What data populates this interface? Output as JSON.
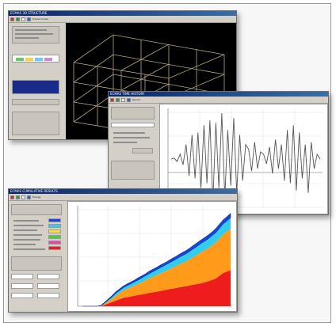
{
  "windows": {
    "structure": {
      "title": "ECMAS 3D STRUCTURE",
      "toolbar_label": "Frame model"
    },
    "time_history": {
      "title": "ECMAS TIME HISTORY",
      "toolbar_label": "Record"
    },
    "stacked": {
      "title": "ECMAS CUMULATIVE RESULTS",
      "toolbar_label": "Energy"
    }
  },
  "colors": {
    "accent": "#0a246a",
    "series_red": "#ee1c1c",
    "series_orange": "#ff9a1a",
    "series_cyan": "#33ccee",
    "series_blue": "#1a44dd"
  },
  "chart_data": [
    {
      "type": "line",
      "x": [
        0,
        1,
        2,
        3,
        4,
        5,
        6,
        7,
        8,
        9,
        10,
        11,
        12,
        13,
        14,
        15,
        16,
        17,
        18,
        19,
        20,
        21,
        22,
        23,
        24,
        25,
        26,
        27,
        28,
        29,
        30,
        31,
        32,
        33,
        34,
        35,
        36,
        37,
        38,
        39,
        40,
        41,
        42,
        43,
        44,
        45,
        46,
        47,
        48,
        49,
        50
      ],
      "values": [
        0,
        0.02,
        -0.05,
        0.1,
        -0.12,
        0.3,
        -0.35,
        0.5,
        -0.4,
        0.55,
        -0.6,
        0.7,
        -0.5,
        0.8,
        -0.9,
        0.75,
        -0.6,
        0.95,
        -0.8,
        0.6,
        -0.55,
        0.85,
        -0.7,
        0.5,
        -0.45,
        0.3,
        0.2,
        -0.25,
        0.35,
        -0.2,
        0.15,
        0.1,
        -0.1,
        0.25,
        -0.3,
        0.4,
        -0.2,
        0.3,
        -0.45,
        0.6,
        -0.5,
        0.7,
        -0.65,
        0.55,
        -0.4,
        0.3,
        -0.7,
        0.35,
        -0.2,
        0.1,
        0
      ],
      "ylim": [
        -1,
        1
      ]
    },
    {
      "type": "area",
      "x": [
        0,
        1,
        2,
        3,
        4,
        5,
        6,
        7,
        8,
        9,
        10,
        11,
        12,
        13,
        14,
        15,
        16,
        17,
        18,
        19,
        20,
        21,
        22,
        23,
        24,
        25,
        26,
        27,
        28,
        29,
        30,
        31,
        32,
        33,
        34,
        35,
        36,
        37,
        38,
        39,
        40
      ],
      "series": [
        {
          "values": [
            0,
            0,
            0,
            0,
            0,
            0,
            0.5,
            1,
            1.5,
            2,
            2.5,
            3,
            3.2,
            3.5,
            3.8,
            4,
            4.2,
            4.5,
            4.8,
            5,
            5.2,
            5.5,
            5.8,
            6,
            6.3,
            6.5,
            6.8,
            7,
            7.2,
            7.5,
            7.8,
            8,
            8.3,
            8.6,
            9,
            9.5,
            10,
            11,
            12,
            12.5,
            13
          ]
        },
        {
          "values": [
            0,
            0,
            0,
            0,
            0,
            0.1,
            0.4,
            0.8,
            1.2,
            1.8,
            2.2,
            2.6,
            3,
            3.3,
            3.6,
            4,
            4.4,
            4.8,
            5.2,
            5.6,
            6,
            6.3,
            6.6,
            7,
            7.4,
            7.8,
            8.2,
            8.6,
            9,
            9.5,
            10,
            10.6,
            11.2,
            11.6,
            12,
            12.5,
            13,
            13.5,
            14,
            14.4,
            15
          ]
        },
        {
          "values": [
            0,
            0,
            0,
            0,
            0,
            0.1,
            0.3,
            0.5,
            0.7,
            0.9,
            1,
            1.1,
            1.2,
            1.3,
            1.4,
            1.5,
            1.6,
            1.7,
            1.8,
            1.9,
            2,
            2.1,
            2.2,
            2.3,
            2.4,
            2.5,
            2.6,
            2.7,
            2.8,
            2.9,
            3,
            3.1,
            3.2,
            3.3,
            3.4,
            3.5,
            3.6,
            3.7,
            3.8,
            3.9,
            4
          ]
        },
        {
          "values": [
            0,
            0,
            0,
            0,
            0,
            0.1,
            0.2,
            0.3,
            0.4,
            0.5,
            0.5,
            0.5,
            0.6,
            0.6,
            0.6,
            0.7,
            0.7,
            0.7,
            0.8,
            0.8,
            0.8,
            0.9,
            0.9,
            0.9,
            1,
            1,
            1,
            1.1,
            1.1,
            1.1,
            1.2,
            1.2,
            1.2,
            1.3,
            1.3,
            1.3,
            1.4,
            1.4,
            1.4,
            1.5,
            1.5
          ]
        }
      ],
      "ylim": [
        0,
        36
      ]
    }
  ]
}
